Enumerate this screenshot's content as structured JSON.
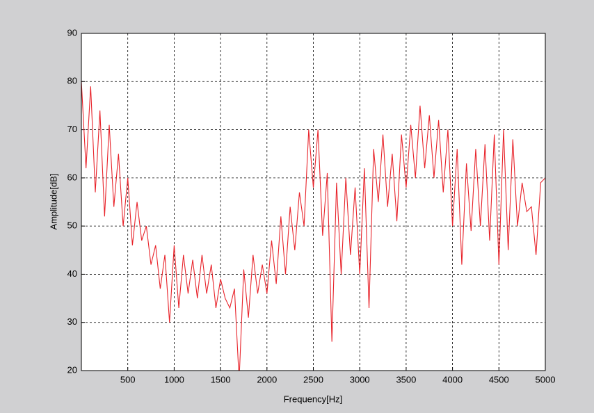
{
  "chart_data": {
    "type": "line",
    "xlabel": "Frequency[Hz]",
    "ylabel": "Amplitude[dB]",
    "x": [
      0,
      50,
      100,
      150,
      200,
      250,
      300,
      350,
      400,
      450,
      500,
      550,
      600,
      650,
      700,
      750,
      800,
      850,
      900,
      950,
      1000,
      1050,
      1100,
      1150,
      1200,
      1250,
      1300,
      1350,
      1400,
      1450,
      1500,
      1550,
      1600,
      1650,
      1700,
      1750,
      1800,
      1850,
      1900,
      1950,
      2000,
      2050,
      2100,
      2150,
      2200,
      2250,
      2300,
      2350,
      2400,
      2450,
      2500,
      2550,
      2600,
      2650,
      2700,
      2750,
      2800,
      2850,
      2900,
      2950,
      3000,
      3050,
      3100,
      3150,
      3200,
      3250,
      3300,
      3350,
      3400,
      3450,
      3500,
      3550,
      3600,
      3650,
      3700,
      3750,
      3800,
      3850,
      3900,
      3950,
      4000,
      4050,
      4100,
      4150,
      4200,
      4250,
      4300,
      4350,
      4400,
      4450,
      4500,
      4550,
      4600,
      4650,
      4700,
      4750,
      4800,
      4850,
      4900,
      4950,
      5000
    ],
    "series": [
      {
        "color": "#e8232a",
        "values": [
          80,
          62,
          79,
          57,
          74,
          52,
          71,
          54,
          65,
          50,
          60,
          46,
          55,
          47,
          50,
          42,
          46,
          37,
          44,
          30,
          46,
          33,
          44,
          36,
          43,
          35,
          44,
          36,
          42,
          33,
          39,
          35,
          33,
          37,
          18,
          41,
          31,
          44,
          36,
          42,
          36,
          47,
          38,
          52,
          40,
          54,
          45,
          57,
          50,
          70,
          58,
          70,
          48,
          61,
          26,
          59,
          40,
          60,
          44,
          58,
          40,
          62,
          33,
          66,
          55,
          69,
          54,
          65,
          51,
          69,
          58,
          71,
          60,
          75,
          62,
          73,
          60,
          72,
          57,
          70,
          50,
          66,
          42,
          63,
          49,
          66,
          50,
          67,
          47,
          69,
          42,
          70,
          45,
          68,
          50,
          59,
          53,
          54,
          44,
          59,
          60
        ]
      }
    ],
    "xlim": [
      0,
      5000
    ],
    "xticks": [
      500,
      1000,
      1500,
      2000,
      2500,
      3000,
      3500,
      4000,
      4500,
      5000
    ],
    "ylim": [
      20,
      90
    ],
    "yticks": [
      20,
      30,
      40,
      50,
      60,
      70,
      80,
      90
    ],
    "grid": true
  }
}
